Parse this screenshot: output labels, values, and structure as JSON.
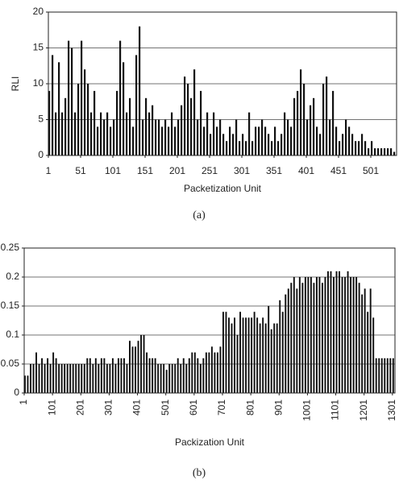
{
  "chart_data": [
    {
      "type": "bar",
      "ylabel": "RLI",
      "xlabel": "Packetization Unit",
      "caption": "(a)",
      "color": "#111111",
      "grid": true,
      "xlim": [
        1,
        541
      ],
      "ylim": [
        0,
        20
      ],
      "xticks": [
        1,
        51,
        101,
        151,
        201,
        251,
        301,
        351,
        401,
        451,
        501
      ],
      "yticks": [
        0,
        5,
        10,
        15,
        20
      ],
      "x": [
        1,
        6,
        11,
        16,
        21,
        26,
        31,
        36,
        41,
        46,
        51,
        56,
        61,
        66,
        71,
        76,
        81,
        86,
        91,
        96,
        101,
        106,
        111,
        116,
        121,
        126,
        131,
        136,
        141,
        146,
        151,
        156,
        161,
        166,
        171,
        176,
        181,
        186,
        191,
        196,
        201,
        206,
        211,
        216,
        221,
        226,
        231,
        236,
        241,
        246,
        251,
        256,
        261,
        266,
        271,
        276,
        281,
        286,
        291,
        296,
        301,
        306,
        311,
        316,
        321,
        326,
        331,
        336,
        341,
        346,
        351,
        356,
        361,
        366,
        371,
        376,
        381,
        386,
        391,
        396,
        401,
        406,
        411,
        416,
        421,
        426,
        431,
        436,
        441,
        446,
        451,
        456,
        461,
        466,
        471,
        476,
        481,
        486,
        491,
        496,
        501,
        506,
        511,
        516,
        521,
        526,
        531,
        536
      ],
      "values": [
        9,
        14,
        6,
        13,
        6,
        8,
        16,
        15,
        6,
        10,
        16,
        12,
        10,
        6,
        9,
        4,
        6,
        5,
        6,
        4,
        5,
        9,
        16,
        13,
        6,
        8,
        4,
        14,
        18,
        5,
        8,
        6,
        7,
        5,
        5,
        4,
        5,
        4,
        6,
        4,
        5,
        7,
        11,
        10,
        8,
        12,
        5,
        9,
        4,
        6,
        3,
        6,
        4,
        5,
        3,
        2,
        4,
        3,
        5,
        2,
        3,
        2,
        6,
        2,
        4,
        4,
        5,
        4,
        3,
        2,
        4,
        2,
        3,
        6,
        5,
        4,
        8,
        9,
        12,
        10,
        5,
        7,
        8,
        4,
        3,
        10,
        11,
        5,
        9,
        4,
        2,
        3,
        5,
        4,
        3,
        2,
        2,
        3,
        2,
        1,
        2,
        1,
        1,
        1,
        1,
        1,
        1,
        0.5
      ]
    },
    {
      "type": "bar",
      "xlabel": "Packization Unit",
      "caption": "(b)",
      "color": "#111111",
      "grid": true,
      "xlim": [
        1,
        1310
      ],
      "ylim": [
        0,
        0.25
      ],
      "xticks": [
        1,
        101,
        201,
        301,
        401,
        501,
        601,
        701,
        801,
        901,
        1001,
        1101,
        1201,
        1301
      ],
      "yticks": [
        0,
        0.05,
        0.1,
        0.15,
        0.2,
        0.25
      ],
      "x": [
        1,
        11,
        21,
        31,
        41,
        51,
        61,
        71,
        81,
        91,
        101,
        111,
        121,
        131,
        141,
        151,
        161,
        171,
        181,
        191,
        201,
        211,
        221,
        231,
        241,
        251,
        261,
        271,
        281,
        291,
        301,
        311,
        321,
        331,
        341,
        351,
        361,
        371,
        381,
        391,
        401,
        411,
        421,
        431,
        441,
        451,
        461,
        471,
        481,
        491,
        501,
        511,
        521,
        531,
        541,
        551,
        561,
        571,
        581,
        591,
        601,
        611,
        621,
        631,
        641,
        651,
        661,
        671,
        681,
        691,
        701,
        711,
        721,
        731,
        741,
        751,
        761,
        771,
        781,
        791,
        801,
        811,
        821,
        831,
        841,
        851,
        861,
        871,
        881,
        891,
        901,
        911,
        921,
        931,
        941,
        951,
        961,
        971,
        981,
        991,
        1001,
        1011,
        1021,
        1031,
        1041,
        1051,
        1061,
        1071,
        1081,
        1091,
        1101,
        1111,
        1121,
        1131,
        1141,
        1151,
        1161,
        1171,
        1181,
        1191,
        1201,
        1211,
        1221,
        1231,
        1241,
        1251,
        1261,
        1271,
        1281,
        1291,
        1301
      ],
      "values": [
        0.03,
        0.03,
        0.05,
        0.05,
        0.07,
        0.05,
        0.06,
        0.05,
        0.06,
        0.05,
        0.07,
        0.06,
        0.05,
        0.05,
        0.05,
        0.05,
        0.05,
        0.05,
        0.05,
        0.05,
        0.05,
        0.05,
        0.06,
        0.06,
        0.05,
        0.06,
        0.05,
        0.06,
        0.06,
        0.05,
        0.05,
        0.06,
        0.05,
        0.06,
        0.06,
        0.06,
        0.05,
        0.09,
        0.08,
        0.08,
        0.09,
        0.1,
        0.1,
        0.07,
        0.06,
        0.06,
        0.06,
        0.05,
        0.05,
        0.05,
        0.04,
        0.05,
        0.05,
        0.05,
        0.06,
        0.05,
        0.06,
        0.05,
        0.06,
        0.07,
        0.07,
        0.06,
        0.05,
        0.06,
        0.07,
        0.07,
        0.08,
        0.07,
        0.07,
        0.08,
        0.14,
        0.14,
        0.13,
        0.12,
        0.13,
        0.1,
        0.14,
        0.13,
        0.13,
        0.13,
        0.13,
        0.14,
        0.13,
        0.12,
        0.13,
        0.12,
        0.15,
        0.11,
        0.12,
        0.12,
        0.16,
        0.14,
        0.17,
        0.18,
        0.19,
        0.2,
        0.18,
        0.2,
        0.19,
        0.2,
        0.2,
        0.2,
        0.19,
        0.2,
        0.2,
        0.19,
        0.2,
        0.21,
        0.21,
        0.2,
        0.21,
        0.21,
        0.2,
        0.2,
        0.21,
        0.2,
        0.2,
        0.2,
        0.19,
        0.17,
        0.18,
        0.14,
        0.18,
        0.13,
        0.06,
        0.06,
        0.06,
        0.06,
        0.06,
        0.06,
        0.06
      ]
    }
  ]
}
